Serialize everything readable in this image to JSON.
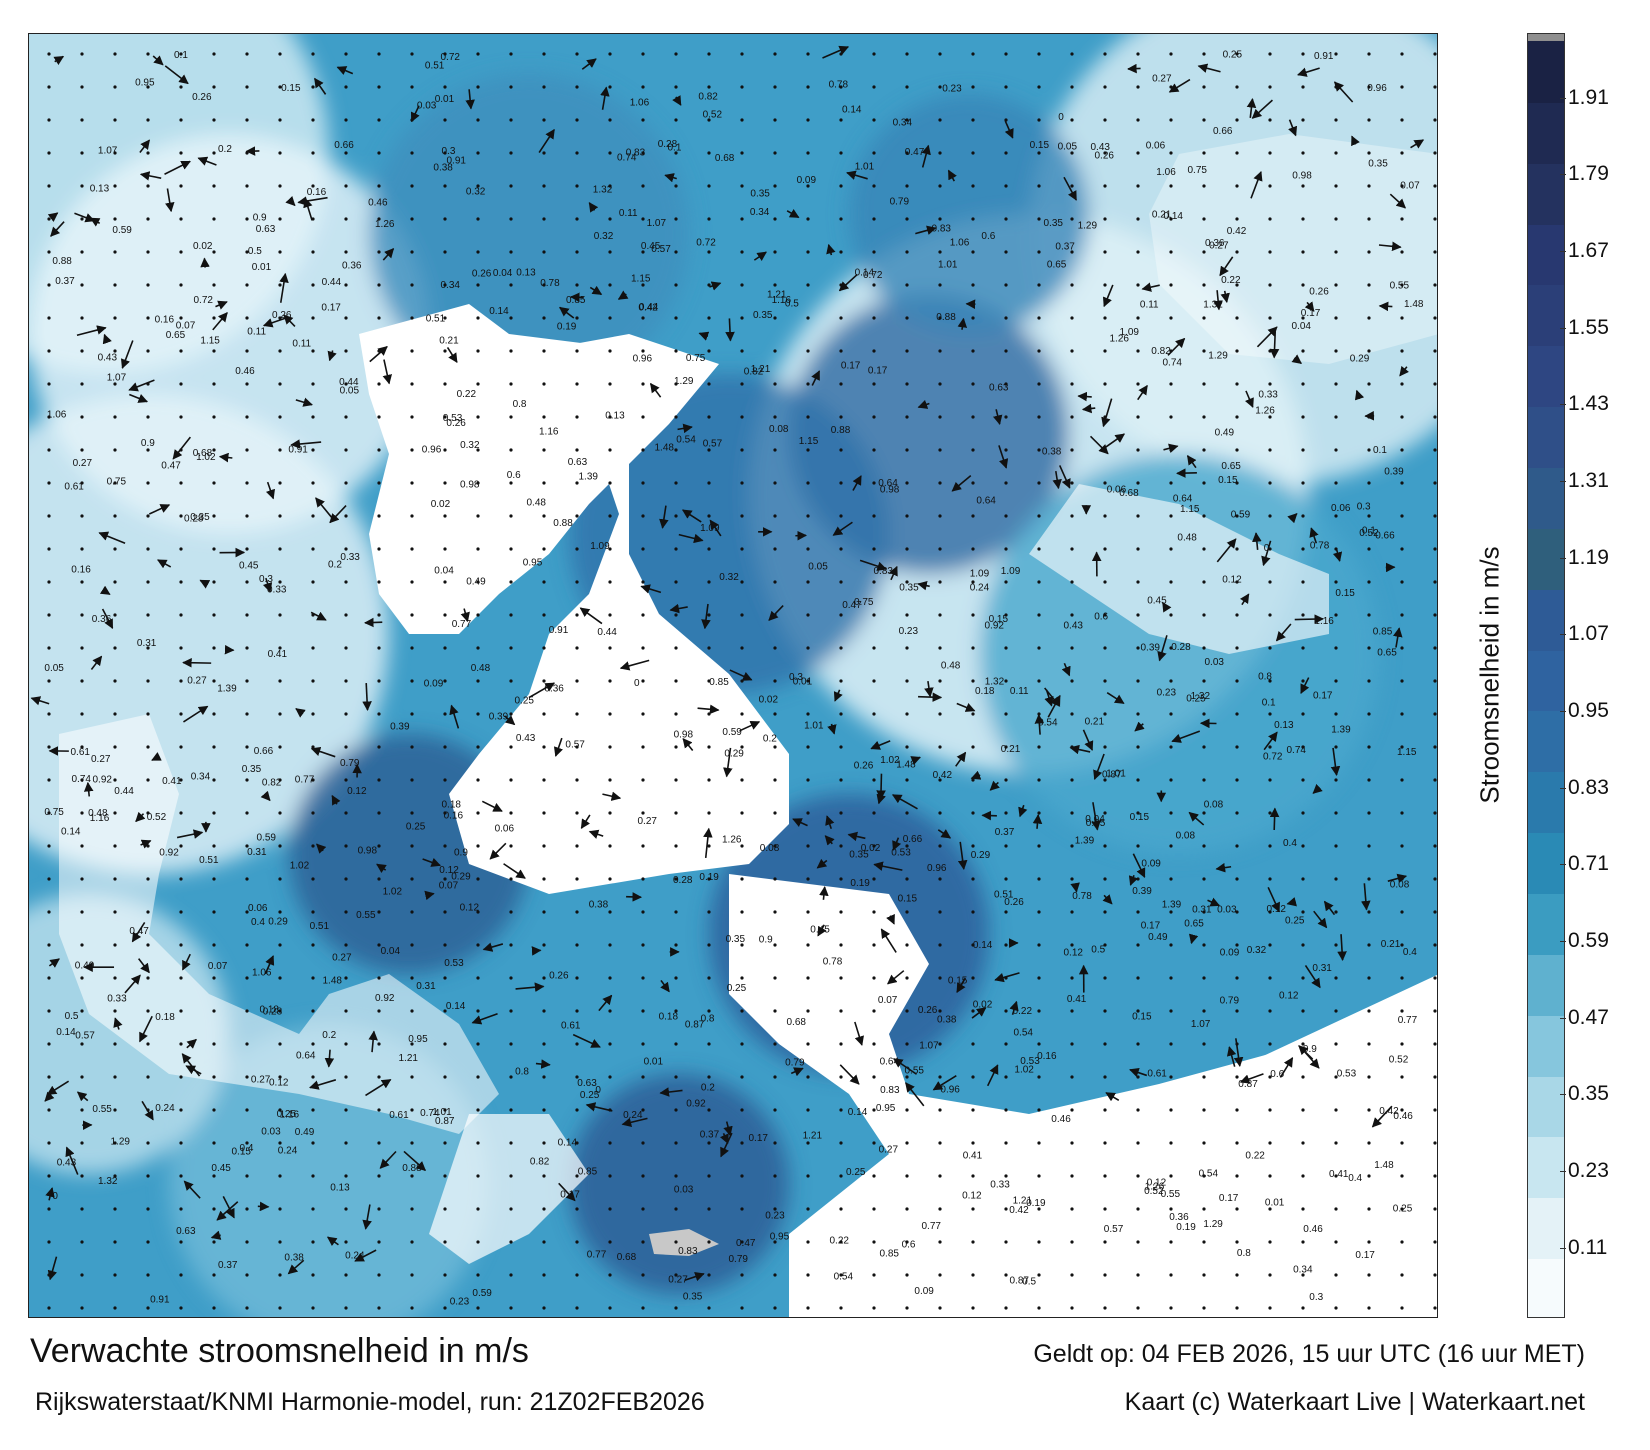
{
  "map": {
    "title": "Verwachte stroomsnelheid in m/s",
    "source": "Rijkswaterstaat/KNMI Harmonie-model, run: 21Z02FEB2026",
    "valid_time": "Geldt op: 04 FEB 2026, 15 uur UTC (16 uur MET)",
    "credit": "Kaart (c) Waterkaart Live | Waterkaart.net",
    "land_color": "#ffffff",
    "arrow_color": "#111111",
    "speed_labels": [
      "0.27",
      "0.14",
      "0.35",
      "0.16",
      "0.18",
      "0.23",
      "0.12",
      "0.26",
      "0.17",
      "0.25",
      "0.2",
      "0.21",
      "0.24",
      "0.22",
      "0.14",
      "0.19",
      "0.15",
      "0.13",
      "0.11",
      "0.12",
      "0.15",
      "0.17",
      "0.31",
      "0.29",
      "0.28",
      "0.27",
      "0.26",
      "0.25",
      "0.3",
      "0.34",
      "0.35",
      "0.37",
      "0.36",
      "0.4",
      "0.39",
      "0.41",
      "0.46",
      "0.48",
      "0.44",
      "0.43",
      "0.45",
      "0.5",
      "0.52",
      "0.51",
      "0.49",
      "0.55",
      "0.57",
      "0.6",
      "0.53",
      "0.59",
      "0.54",
      "0.47",
      "0.42",
      "0.38",
      "0.33",
      "0.32",
      "0.1",
      "0.09",
      "0.08",
      "0.07",
      "0.06",
      "0.05",
      "0.04",
      "0.03",
      "0.02",
      "0.01",
      "0",
      "0.61",
      "0.63",
      "0.64",
      "0.65",
      "0.66",
      "0.68",
      "0.72",
      "0.74",
      "0.75",
      "0.77",
      "0.78",
      "0.79",
      "0.8",
      "0.82",
      "0.83",
      "0.85",
      "0.87",
      "0.88",
      "0.9",
      "0.91",
      "0.92",
      "0.95",
      "0.96",
      "0.98",
      "1.01",
      "1.02",
      "1.06",
      "1.07",
      "1.09",
      "1.15",
      "1.16",
      "1.21",
      "1.26",
      "1.29",
      "1.32",
      "1.39",
      "1.48"
    ]
  },
  "colorbar": {
    "title": "Stroomsnelheid in m/s",
    "ticks": [
      "0.11",
      "0.23",
      "0.35",
      "0.47",
      "0.59",
      "0.71",
      "0.83",
      "0.95",
      "1.07",
      "1.19",
      "1.31",
      "1.43",
      "1.55",
      "1.67",
      "1.79",
      "1.91"
    ],
    "colors": [
      "#f6fbfd",
      "#e4f2f7",
      "#c8e6f0",
      "#a9d7e7",
      "#86c6dd",
      "#5fb1cf",
      "#3b9cc1",
      "#2a8ab5",
      "#2a7aac",
      "#2e6ea6",
      "#2f63a0",
      "#2e5b96",
      "#2f5f7c",
      "#2f5a8a",
      "#2f4f88",
      "#2e4682",
      "#2b3f78",
      "#283870",
      "#24325f",
      "#1f2a52",
      "#1a2244"
    ],
    "top_color": "#8f8f8f",
    "range": [
      0,
      2.0
    ]
  }
}
